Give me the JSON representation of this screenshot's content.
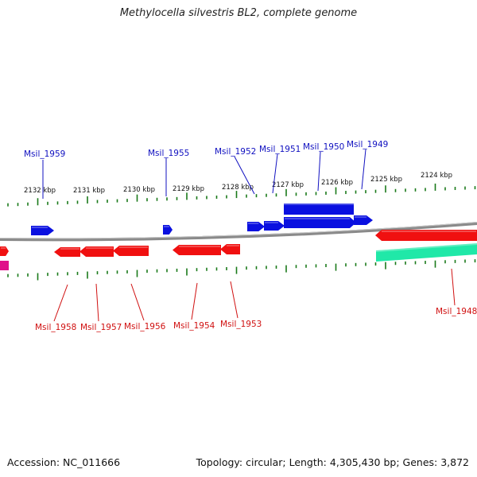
{
  "title": "Methylocella silvestris BL2, complete genome",
  "footer": {
    "accession_label": "Accession: NC_011666",
    "topology_label": "Topology: circular; Length: 4,305,430 bp; Genes: 3,872"
  },
  "colors": {
    "forward_gene": "#0a10e0",
    "reverse_gene": "#f01010",
    "rna_gene": "#20e8a8",
    "pink_gene": "#e0108a",
    "backbone": "#8a8a8a",
    "tick": "#1a7a1a",
    "forward_label": "#1010c0",
    "reverse_label": "#d01010"
  },
  "scale_labels": [
    {
      "text": "2132 kbp"
    },
    {
      "text": "2131 kbp"
    },
    {
      "text": "2130 kbp"
    },
    {
      "text": "2129 kbp"
    },
    {
      "text": "2128 kbp"
    },
    {
      "text": "2127 kbp"
    },
    {
      "text": "2126 kbp"
    },
    {
      "text": "2125 kbp"
    },
    {
      "text": "2124 kbp"
    }
  ],
  "forward_gene_labels": [
    {
      "name": "Msil_1959"
    },
    {
      "name": "Msil_1955"
    },
    {
      "name": "Msil_1952"
    },
    {
      "name": "Msil_1951"
    },
    {
      "name": "Msil_1950"
    },
    {
      "name": "Msil_1949"
    }
  ],
  "reverse_gene_labels": [
    {
      "name": "Msil_1958"
    },
    {
      "name": "Msil_1957"
    },
    {
      "name": "Msil_1956"
    },
    {
      "name": "Msil_1954"
    },
    {
      "name": "Msil_1953"
    },
    {
      "name": "Msil_1948"
    }
  ]
}
